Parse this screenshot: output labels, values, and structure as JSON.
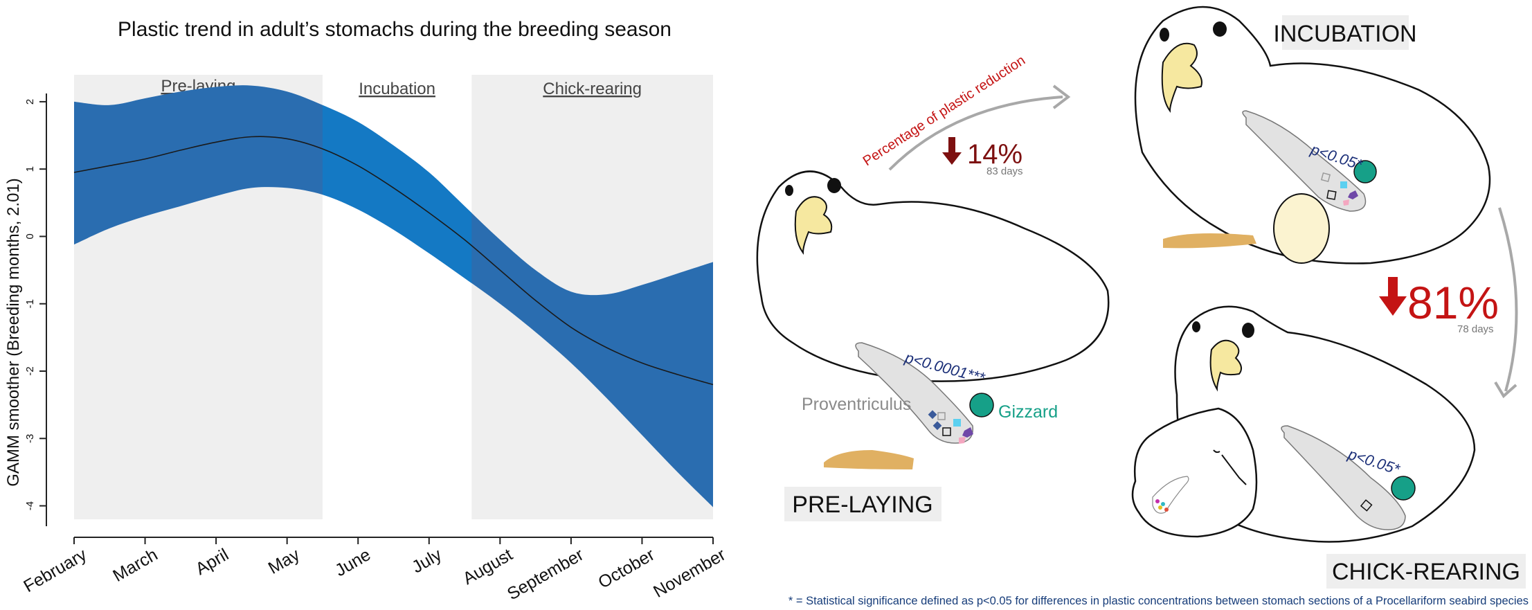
{
  "chart_data": {
    "type": "line",
    "title": "Plastic trend in adult’s stomachs during the breeding season",
    "ylabel": "GAMM smoother (Breeding months, 2.01)",
    "xlabel": "",
    "ylim": [
      -4.2,
      2.4
    ],
    "yticks": [
      "2",
      "1",
      "0",
      "-1",
      "-2",
      "-3",
      "-4"
    ],
    "categories": [
      "February",
      "March",
      "April",
      "May",
      "June",
      "July",
      "August",
      "September",
      "October",
      "November"
    ],
    "x": [
      1,
      1.5,
      2,
      2.5,
      3,
      3.5,
      4,
      4.5,
      5,
      5.5,
      6,
      6.5,
      7,
      7.5,
      8,
      8.5,
      9,
      9.5,
      10
    ],
    "series": [
      {
        "role": "estimate",
        "values": [
          0.95,
          1.05,
          1.15,
          1.28,
          1.4,
          1.48,
          1.45,
          1.3,
          1.05,
          0.72,
          0.35,
          -0.05,
          -0.5,
          -0.95,
          -1.35,
          -1.65,
          -1.88,
          -2.05,
          -2.2
        ]
      },
      {
        "role": "upper",
        "values": [
          2.0,
          1.95,
          2.05,
          2.15,
          2.22,
          2.24,
          2.15,
          1.95,
          1.7,
          1.35,
          0.95,
          0.45,
          -0.05,
          -0.5,
          -0.82,
          -0.86,
          -0.72,
          -0.55,
          -0.38
        ]
      },
      {
        "role": "lower",
        "values": [
          -0.12,
          0.12,
          0.3,
          0.45,
          0.6,
          0.72,
          0.72,
          0.62,
          0.4,
          0.1,
          -0.25,
          -0.62,
          -1.0,
          -1.42,
          -1.88,
          -2.4,
          -2.95,
          -3.5,
          -4.02
        ]
      }
    ],
    "phases": [
      {
        "label": "Pre-laying",
        "start": 1,
        "end": 4.5,
        "shaded": true
      },
      {
        "label": "Incubation",
        "start": 4.5,
        "end": 6.6,
        "shaded": false
      },
      {
        "label": "Chick-rearing",
        "start": 6.6,
        "end": 10,
        "shaded": true
      }
    ],
    "band_color": "#2a6db0",
    "band_overlap_color": "#1479c4",
    "phase_shade_color": "#efefef",
    "grid": false,
    "legend": "none"
  },
  "illustration": {
    "stages": {
      "pre_laying": "PRE-LAYING",
      "incubation": "INCUBATION",
      "chick_rearing": "CHICK-REARING"
    },
    "reduction_label": "Percentage of plastic reduction",
    "reduction_1": {
      "percent": "14%",
      "days": "83 days"
    },
    "reduction_2": {
      "percent": "81%",
      "days": "78 days"
    },
    "pvalues": {
      "pre_laying": "p<0.0001***",
      "incubation": "p<0.05*",
      "chick_rearing": "p<0.05*"
    },
    "organs": {
      "proventriculus": "Proventriculus",
      "gizzard": "Gizzard"
    },
    "footnote": "* = Statistical significance defined as p<0.05 for differences in plastic concentrations between stomach sections of a Procellariform seabird species",
    "colors": {
      "dark_red": "#7d1010",
      "red": "#c41414",
      "gizzard": "#16a088",
      "beak": "#f6e8a0",
      "foot": "#e0b062",
      "egg": "#fbf3d0",
      "stomach": "#e2e2e2"
    }
  }
}
